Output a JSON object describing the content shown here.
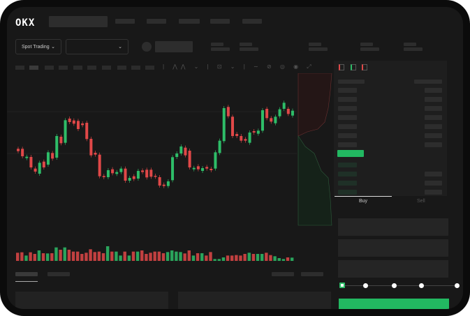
{
  "header": {
    "logo": "OKX"
  },
  "toolbar": {
    "market_select": "Spot Trading",
    "chevron": "⌄"
  },
  "orderbook": {
    "icons": [
      "orderbook-both-icon",
      "orderbook-bids-icon",
      "orderbook-asks-icon"
    ]
  },
  "trade": {
    "tabs": [
      "Buy",
      "Sell"
    ],
    "active_tab": "Buy",
    "slider_steps": 5,
    "slider_value": 0
  },
  "colors": {
    "up": "#2ebd68",
    "down": "#e04848",
    "background": "#181818",
    "button": "#22b861"
  },
  "chart_data": {
    "type": "candlestick",
    "candles": [
      [
        200,
        190
      ],
      [
        200,
        168
      ],
      [
        160,
        166
      ],
      [
        165,
        120
      ],
      [
        115,
        102
      ],
      [
        93,
        140
      ],
      [
        145,
        120
      ],
      [
        132,
        185
      ],
      [
        182,
        158
      ],
      [
        162,
        255
      ],
      [
        252,
        224
      ],
      [
        226,
        323
      ],
      [
        330,
        315
      ],
      [
        322,
        308
      ],
      [
        320,
        285
      ],
      [
        309,
        302
      ],
      [
        312,
        242
      ],
      [
        243,
        172
      ],
      [
        183,
        175
      ],
      [
        175,
        82
      ],
      [
        83,
        78
      ],
      [
        78,
        108
      ],
      [
        112,
        95
      ],
      [
        92,
        100
      ],
      [
        100,
        115
      ],
      [
        115,
        63
      ],
      [
        63,
        75
      ],
      [
        82,
        70
      ],
      [
        72,
        105
      ],
      [
        107,
        100
      ],
      [
        110,
        77
      ],
      [
        110,
        80
      ],
      [
        84,
        80
      ],
      [
        78,
        42
      ],
      [
        46,
        40
      ],
      [
        40,
        60
      ],
      [
        65,
        164
      ],
      [
        165,
        180
      ],
      [
        180,
        210
      ],
      [
        205,
        172
      ],
      [
        192,
        120
      ],
      [
        112,
        118
      ],
      [
        125,
        112
      ],
      [
        105,
        117
      ],
      [
        122,
        115
      ],
      [
        114,
        108
      ],
      [
        115,
        185
      ],
      [
        182,
        235
      ],
      [
        233,
        375
      ],
      [
        380,
        340
      ],
      [
        338,
        255
      ],
      [
        264,
        255
      ],
      [
        255,
        235
      ],
      [
        242,
        235
      ],
      [
        226,
        270
      ],
      [
        276,
        270
      ],
      [
        265,
        278
      ],
      [
        278,
        366
      ],
      [
        372,
        332
      ],
      [
        332,
        317
      ],
      [
        310,
        338
      ],
      [
        340,
        370
      ],
      [
        372,
        398
      ],
      [
        372,
        350
      ],
      [
        343,
        364
      ]
    ],
    "volumes": [
      35,
      37,
      23,
      37,
      30,
      45,
      33,
      32,
      33,
      58,
      48,
      58,
      48,
      40,
      40,
      30,
      35,
      50,
      38,
      40,
      33,
      63,
      40,
      40,
      23,
      40,
      23,
      40,
      40,
      45,
      30,
      35,
      40,
      40,
      33,
      38,
      45,
      40,
      38,
      32,
      45,
      23,
      33,
      33,
      23,
      38,
      8,
      8,
      15,
      23,
      23,
      25,
      23,
      30,
      35,
      30,
      30,
      30,
      35,
      25,
      20,
      12,
      8,
      15,
      14
    ]
  }
}
